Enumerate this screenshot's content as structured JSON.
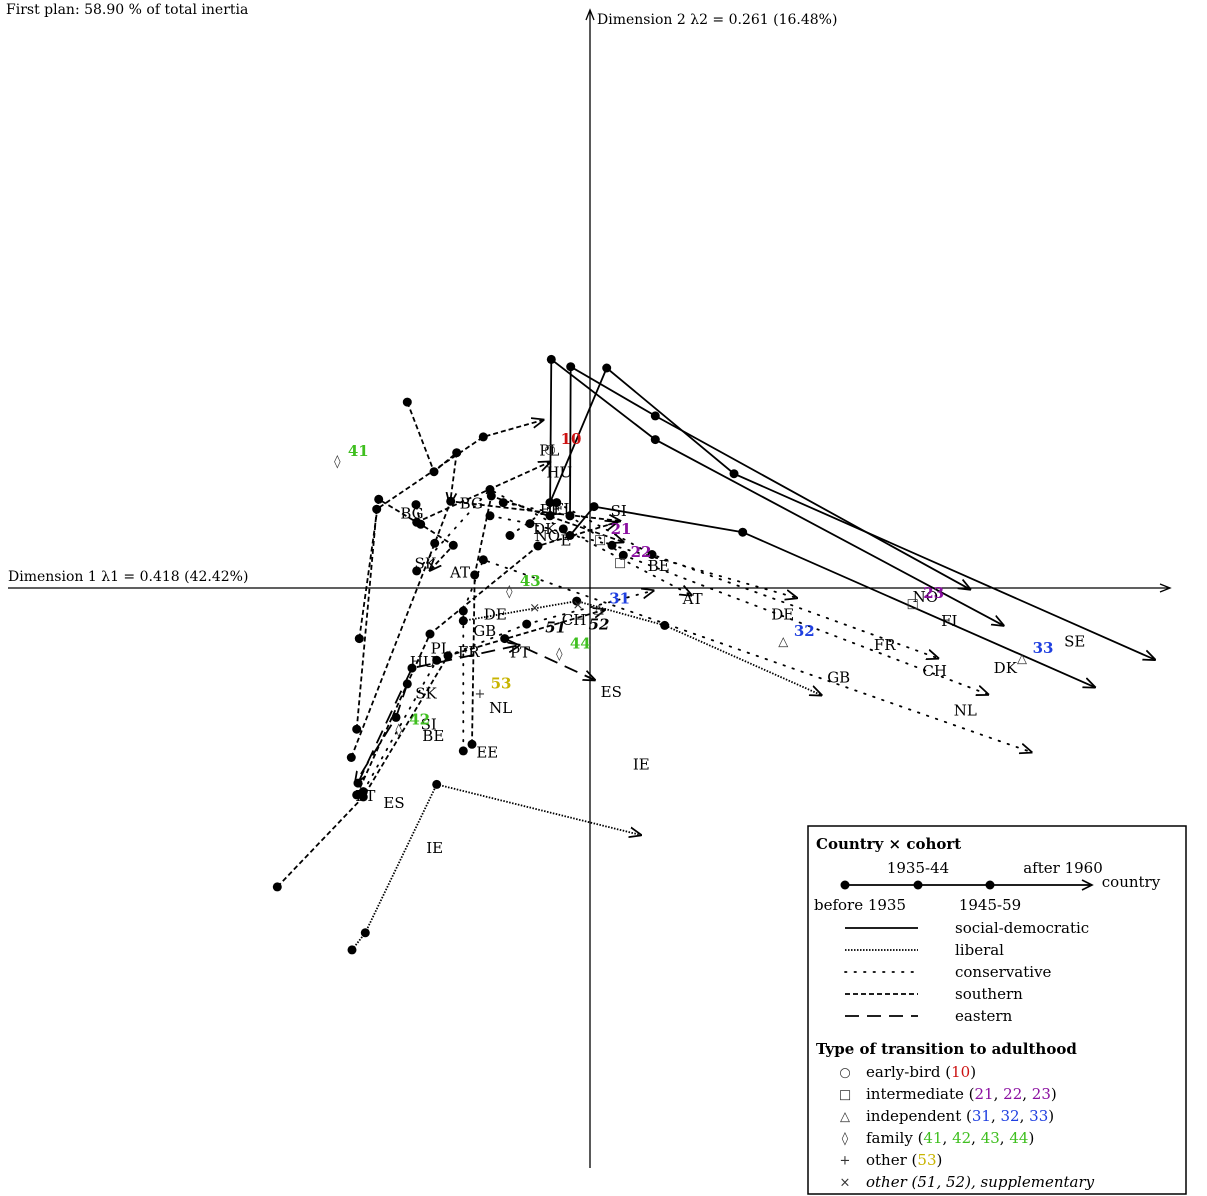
{
  "chart_data": {
    "type": "scatter",
    "title": "First plan: 58.90 % of total inertia",
    "xlabel": "Dimension 1 λ1 = 0.418 (42.42%)",
    "ylabel": "Dimension 2 λ2 = 0.261 (16.48%)",
    "xlim": [
      -0.86,
      0.87
    ],
    "ylim": [
      -0.84,
      0.88
    ],
    "cohorts": [
      "before 1935",
      "1935-44",
      "1945-59",
      "after 1960"
    ],
    "trajectories": [
      {
        "country": "SE",
        "regime": "social-democratic",
        "points": [
          [
            -0.06,
            0.13
          ],
          [
            0.025,
            0.335
          ],
          [
            0.216,
            0.174
          ],
          [
            0.847,
            -0.109
          ]
        ]
      },
      {
        "country": "NO",
        "regime": "social-democratic",
        "points": [
          [
            -0.03,
            0.11
          ],
          [
            -0.029,
            0.337
          ],
          [
            0.098,
            0.262
          ],
          [
            0.57,
            -0.002
          ]
        ]
      },
      {
        "country": "FI",
        "regime": "social-democratic",
        "points": [
          [
            -0.06,
            0.11
          ],
          [
            -0.058,
            0.348
          ],
          [
            0.098,
            0.226
          ],
          [
            0.62,
            -0.057
          ]
        ]
      },
      {
        "country": "DK",
        "regime": "social-democratic",
        "points": [
          [
            -0.03,
            0.08
          ],
          [
            0.006,
            0.124
          ],
          [
            0.229,
            0.085
          ],
          [
            0.757,
            -0.151
          ]
        ]
      },
      {
        "country": "AT",
        "regime": "conservative",
        "points": [
          [
            -0.26,
            0.026
          ],
          [
            -0.15,
            0.15
          ],
          [
            -0.04,
            0.09
          ],
          [
            0.152,
            -0.011
          ]
        ]
      },
      {
        "country": "DE",
        "regime": "conservative",
        "points": [
          [
            -0.15,
            0.11
          ],
          [
            -0.09,
            0.098
          ],
          [
            0.033,
            0.065
          ],
          [
            0.31,
            -0.015
          ]
        ]
      },
      {
        "country": "FR",
        "regime": "conservative",
        "points": [
          [
            -0.12,
            0.08
          ],
          [
            -0.05,
            0.13
          ],
          [
            0.093,
            0.051
          ],
          [
            0.522,
            -0.107
          ]
        ]
      },
      {
        "country": "CH",
        "regime": "conservative",
        "points": [
          [
            -0.13,
            0.13
          ],
          [
            -0.03,
            0.11
          ],
          [
            0.05,
            0.05
          ],
          [
            0.597,
            -0.162
          ]
        ]
      },
      {
        "country": "BE",
        "regime": "conservative",
        "points": [
          [
            -0.34,
            -0.31
          ],
          [
            -0.23,
            -0.11
          ],
          [
            -0.095,
            -0.055
          ],
          [
            0.095,
            -0.004
          ]
        ]
      },
      {
        "country": "NL",
        "regime": "conservative",
        "points": [
          [
            -0.19,
            -0.248
          ],
          [
            -0.19,
            -0.035
          ],
          [
            -0.16,
            0.043
          ],
          [
            0.662,
            -0.25
          ]
        ]
      },
      {
        "country": "GB",
        "regime": "liberal",
        "points": [
          [
            -0.19,
            -0.05
          ],
          [
            -0.02,
            -0.02
          ],
          [
            0.112,
            -0.057
          ],
          [
            0.347,
            -0.163
          ]
        ]
      },
      {
        "country": "IE",
        "regime": "liberal",
        "points": [
          [
            -0.357,
            -0.551
          ],
          [
            -0.337,
            -0.525
          ],
          [
            -0.23,
            -0.299
          ],
          [
            0.076,
            -0.376
          ]
        ]
      },
      {
        "country": "ES",
        "regime": "southern",
        "points": [
          [
            -0.469,
            -0.455
          ],
          [
            -0.34,
            -0.318
          ],
          [
            -0.213,
            -0.103
          ],
          [
            0.022,
            -0.033
          ]
        ]
      },
      {
        "country": "PT",
        "regime": "southern",
        "points": [
          [
            -0.35,
            -0.315
          ],
          [
            -0.24,
            -0.07
          ],
          [
            -0.078,
            0.064
          ],
          [
            0.04,
            0.1
          ]
        ]
      },
      {
        "country": "SI",
        "regime": "southern",
        "points": [
          [
            -0.358,
            -0.258
          ],
          [
            -0.233,
            0.068
          ],
          [
            -0.209,
            0.132
          ],
          [
            0.045,
            0.102
          ]
        ]
      },
      {
        "country": "BG",
        "regime": "southern",
        "points": [
          [
            -0.274,
            0.283
          ],
          [
            -0.234,
            0.177
          ],
          [
            -0.2,
            0.206
          ],
          [
            -0.21,
            0.128
          ]
        ]
      },
      {
        "country": "HU",
        "regime": "southern",
        "points": [
          [
            -0.346,
            -0.077
          ],
          [
            -0.317,
            0.135
          ],
          [
            -0.26,
            0.1
          ],
          [
            -0.06,
            0.192
          ]
        ]
      },
      {
        "country": "SK",
        "regime": "southern",
        "points": [
          [
            -0.261,
            0.127
          ],
          [
            -0.254,
            0.097
          ],
          [
            -0.205,
            0.065
          ],
          [
            -0.24,
            0.027
          ]
        ]
      },
      {
        "country": "PL",
        "regime": "southern",
        "points": [
          [
            -0.35,
            -0.215
          ],
          [
            -0.32,
            0.12
          ],
          [
            -0.16,
            0.23
          ],
          [
            -0.07,
            0.256
          ]
        ]
      },
      {
        "country": "EE",
        "regime": "southern",
        "points": [
          [
            -0.177,
            -0.238
          ],
          [
            -0.173,
            0.02
          ],
          [
            -0.148,
            0.14
          ],
          [
            0.05,
            0.07
          ]
        ]
      },
      {
        "country": "SK",
        "regime": "eastern",
        "points": [
          [
            -0.274,
            -0.146
          ],
          [
            -0.291,
            -0.197
          ],
          [
            -0.352,
            -0.297
          ]
        ]
      },
      {
        "country": "PT",
        "regime": "eastern",
        "points": [
          [
            -0.348,
            -0.297
          ],
          [
            -0.267,
            -0.122
          ],
          [
            -0.106,
            -0.087
          ]
        ]
      },
      {
        "country": "ES",
        "regime": "eastern",
        "points": [
          [
            -0.128,
            -0.077
          ],
          [
            0.007,
            -0.14
          ]
        ]
      }
    ],
    "country_labels": [
      {
        "text": "SE",
        "x": 0.727,
        "y": -0.083
      },
      {
        "text": "NO",
        "x": 0.503,
        "y": -0.015
      },
      {
        "text": "FI",
        "x": 0.539,
        "y": -0.052
      },
      {
        "text": "DK",
        "x": 0.623,
        "y": -0.123
      },
      {
        "text": "AT",
        "x": 0.154,
        "y": -0.018
      },
      {
        "text": "DE",
        "x": 0.289,
        "y": -0.042
      },
      {
        "text": "FR",
        "x": 0.442,
        "y": -0.088
      },
      {
        "text": "CH",
        "x": 0.517,
        "y": -0.128
      },
      {
        "text": "BE",
        "x": 0.103,
        "y": 0.032
      },
      {
        "text": "NL",
        "x": 0.563,
        "y": -0.188
      },
      {
        "text": "GB",
        "x": 0.373,
        "y": -0.138
      },
      {
        "text": "IE",
        "x": 0.077,
        "y": -0.27
      },
      {
        "text": "ES",
        "x": 0.032,
        "y": -0.16
      },
      {
        "text": "AT",
        "x": -0.195,
        "y": 0.022
      },
      {
        "text": "DE",
        "x": -0.142,
        "y": -0.042
      },
      {
        "text": "FR",
        "x": -0.182,
        "y": -0.099
      },
      {
        "text": "CH",
        "x": -0.024,
        "y": -0.05
      },
      {
        "text": "BE",
        "x": -0.235,
        "y": -0.227
      },
      {
        "text": "NL",
        "x": -0.134,
        "y": -0.184
      },
      {
        "text": "GB",
        "x": -0.158,
        "y": -0.067
      },
      {
        "text": "IE",
        "x": -0.233,
        "y": -0.397
      },
      {
        "text": "ES",
        "x": -0.294,
        "y": -0.329
      },
      {
        "text": "PT",
        "x": -0.337,
        "y": -0.318
      },
      {
        "text": "PT",
        "x": -0.105,
        "y": -0.1
      },
      {
        "text": "SI",
        "x": -0.242,
        "y": -0.209
      },
      {
        "text": "BG",
        "x": -0.267,
        "y": 0.112
      },
      {
        "text": "BG",
        "x": -0.178,
        "y": 0.127
      },
      {
        "text": "HU",
        "x": -0.251,
        "y": -0.114
      },
      {
        "text": "HU",
        "x": -0.046,
        "y": 0.174
      },
      {
        "text": "SK",
        "x": -0.246,
        "y": -0.162
      },
      {
        "text": "SK",
        "x": -0.247,
        "y": 0.036
      },
      {
        "text": "PL",
        "x": -0.224,
        "y": -0.094
      },
      {
        "text": "PL",
        "x": -0.061,
        "y": 0.208
      },
      {
        "text": "EE",
        "x": -0.059,
        "y": 0.117
      },
      {
        "text": "EE",
        "x": -0.154,
        "y": -0.252
      },
      {
        "text": "FI",
        "x": -0.043,
        "y": 0.119
      },
      {
        "text": "DK",
        "x": -0.068,
        "y": 0.088
      },
      {
        "text": "NO",
        "x": -0.064,
        "y": 0.078
      },
      {
        "text": "E",
        "x": -0.036,
        "y": 0.071
      },
      {
        "text": "SI",
        "x": 0.043,
        "y": 0.116
      }
    ],
    "type_points": [
      {
        "type": "early-bird",
        "symbol": "○",
        "code": "10",
        "x": -0.06,
        "y": 0.21
      },
      {
        "type": "intermediate",
        "symbol": "□",
        "code": "21",
        "x": 0.015,
        "y": 0.073
      },
      {
        "type": "intermediate",
        "symbol": "□",
        "code": "22",
        "x": 0.045,
        "y": 0.038
      },
      {
        "type": "intermediate",
        "symbol": "□",
        "code": "23",
        "x": 0.484,
        "y": -0.024
      },
      {
        "type": "independent",
        "symbol": "△",
        "code": "31",
        "x": 0.013,
        "y": -0.033
      },
      {
        "type": "independent",
        "symbol": "△",
        "code": "32",
        "x": 0.29,
        "y": -0.082
      },
      {
        "type": "independent",
        "symbol": "△",
        "code": "33",
        "x": 0.648,
        "y": -0.108
      },
      {
        "type": "family",
        "symbol": "◊",
        "code": "41",
        "x": -0.379,
        "y": 0.192
      },
      {
        "type": "family",
        "symbol": "◊",
        "code": "42",
        "x": -0.287,
        "y": -0.217
      },
      {
        "type": "family",
        "symbol": "◊",
        "code": "43",
        "x": -0.121,
        "y": -0.006
      },
      {
        "type": "family",
        "symbol": "◊",
        "code": "44",
        "x": -0.046,
        "y": -0.101
      },
      {
        "type": "other",
        "symbol": "+",
        "code": "53",
        "x": -0.165,
        "y": -0.162
      },
      {
        "type": "other (supplementary)",
        "symbol": "×",
        "code": "51",
        "x": -0.083,
        "y": -0.031
      },
      {
        "type": "other (supplementary)",
        "symbol": "×",
        "code": "52",
        "x": -0.018,
        "y": -0.027
      }
    ]
  },
  "legend": {
    "title": "Country × cohort",
    "cohort_before": "before 1935",
    "cohort_1935": "1935-44",
    "cohort_1945": "1945-59",
    "cohort_after": "after 1960",
    "country": "country",
    "regimes": [
      "social-democratic",
      "liberal",
      "conservative",
      "southern",
      "eastern"
    ],
    "type_title": "Type of transition to adulthood",
    "types": [
      {
        "symbol": "○",
        "label": "early-bird",
        "codes": [
          "10"
        ],
        "colors": [
          "#cc1111"
        ],
        "italic": false
      },
      {
        "symbol": "□",
        "label": "intermediate",
        "codes": [
          "21",
          "22",
          "23"
        ],
        "colors": [
          "#8a0fa0",
          "#8a0fa0",
          "#8a0fa0"
        ],
        "italic": false
      },
      {
        "symbol": "△",
        "label": "independent",
        "codes": [
          "31",
          "32",
          "33"
        ],
        "colors": [
          "#1f3fe0",
          "#1f3fe0",
          "#1f3fe0"
        ],
        "italic": false
      },
      {
        "symbol": "◊",
        "label": "family",
        "codes": [
          "41",
          "42",
          "43",
          "44"
        ],
        "colors": [
          "#3fbf1f",
          "#3fbf1f",
          "#3fbf1f",
          "#3fbf1f"
        ],
        "italic": false
      },
      {
        "symbol": "+",
        "label": "other",
        "codes": [
          "53"
        ],
        "colors": [
          "#c8b400"
        ],
        "italic": false
      },
      {
        "symbol": "×",
        "label": "other (51, 52), supplementary",
        "codes": [],
        "colors": [],
        "italic": true
      }
    ]
  },
  "type_colors": {
    "10": "#cc1111",
    "21": "#8a0fa0",
    "22": "#8a0fa0",
    "23": "#8a0fa0",
    "31": "#1f3fe0",
    "32": "#1f3fe0",
    "33": "#1f3fe0",
    "41": "#3fbf1f",
    "42": "#3fbf1f",
    "43": "#3fbf1f",
    "44": "#3fbf1f",
    "53": "#c8b400",
    "51": "#000000",
    "52": "#000000"
  }
}
